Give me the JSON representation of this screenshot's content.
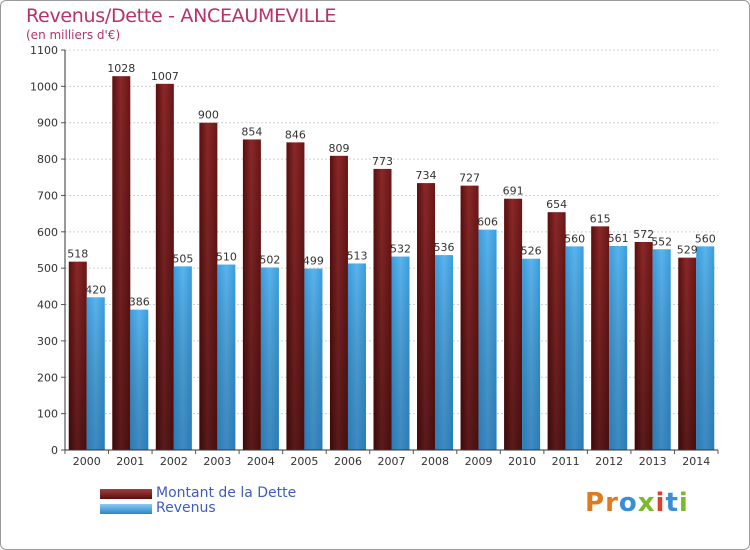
{
  "header": {
    "title": "Revenus/Dette - ANCEAUMEVILLE",
    "subtitle": "(en milliers d'€)"
  },
  "chart_data": {
    "type": "bar",
    "title": "Revenus/Dette - ANCEAUMEVILLE",
    "subtitle": "(en milliers d'€)",
    "categories": [
      "2000",
      "2001",
      "2002",
      "2003",
      "2004",
      "2005",
      "2006",
      "2007",
      "2008",
      "2009",
      "2010",
      "2011",
      "2012",
      "2013",
      "2014"
    ],
    "series": [
      {
        "name": "Montant de la Dette",
        "color": "#7a1c1c",
        "values": [
          518,
          1028,
          1007,
          900,
          854,
          846,
          809,
          773,
          734,
          727,
          691,
          654,
          615,
          572,
          529
        ]
      },
      {
        "name": "Revenus",
        "color": "#3a9ee0",
        "values": [
          420,
          386,
          505,
          510,
          502,
          499,
          513,
          532,
          536,
          606,
          526,
          560,
          561,
          552,
          560
        ]
      }
    ],
    "yticks": [
      0,
      100,
      200,
      300,
      400,
      500,
      600,
      700,
      800,
      900,
      1000,
      1100
    ],
    "ylim": [
      0,
      1100
    ],
    "grid": true,
    "legend_position": "bottom-left"
  },
  "legend": {
    "items": [
      {
        "label": "Montant de la Dette",
        "color": "#7a1c1c"
      },
      {
        "label": "Revenus",
        "color": "#3a9ee0"
      }
    ]
  },
  "logo": {
    "letters": [
      {
        "ch": "P",
        "color": "#e07a1f"
      },
      {
        "ch": "r",
        "color": "#e07a1f"
      },
      {
        "ch": "o",
        "color": "#3a8ed6"
      },
      {
        "ch": "x",
        "color": "#7cba2c"
      },
      {
        "ch": "i",
        "color": "#e23c2c"
      },
      {
        "ch": "t",
        "color": "#3a8ed6"
      },
      {
        "ch": "i",
        "color": "#7cba2c"
      }
    ]
  }
}
